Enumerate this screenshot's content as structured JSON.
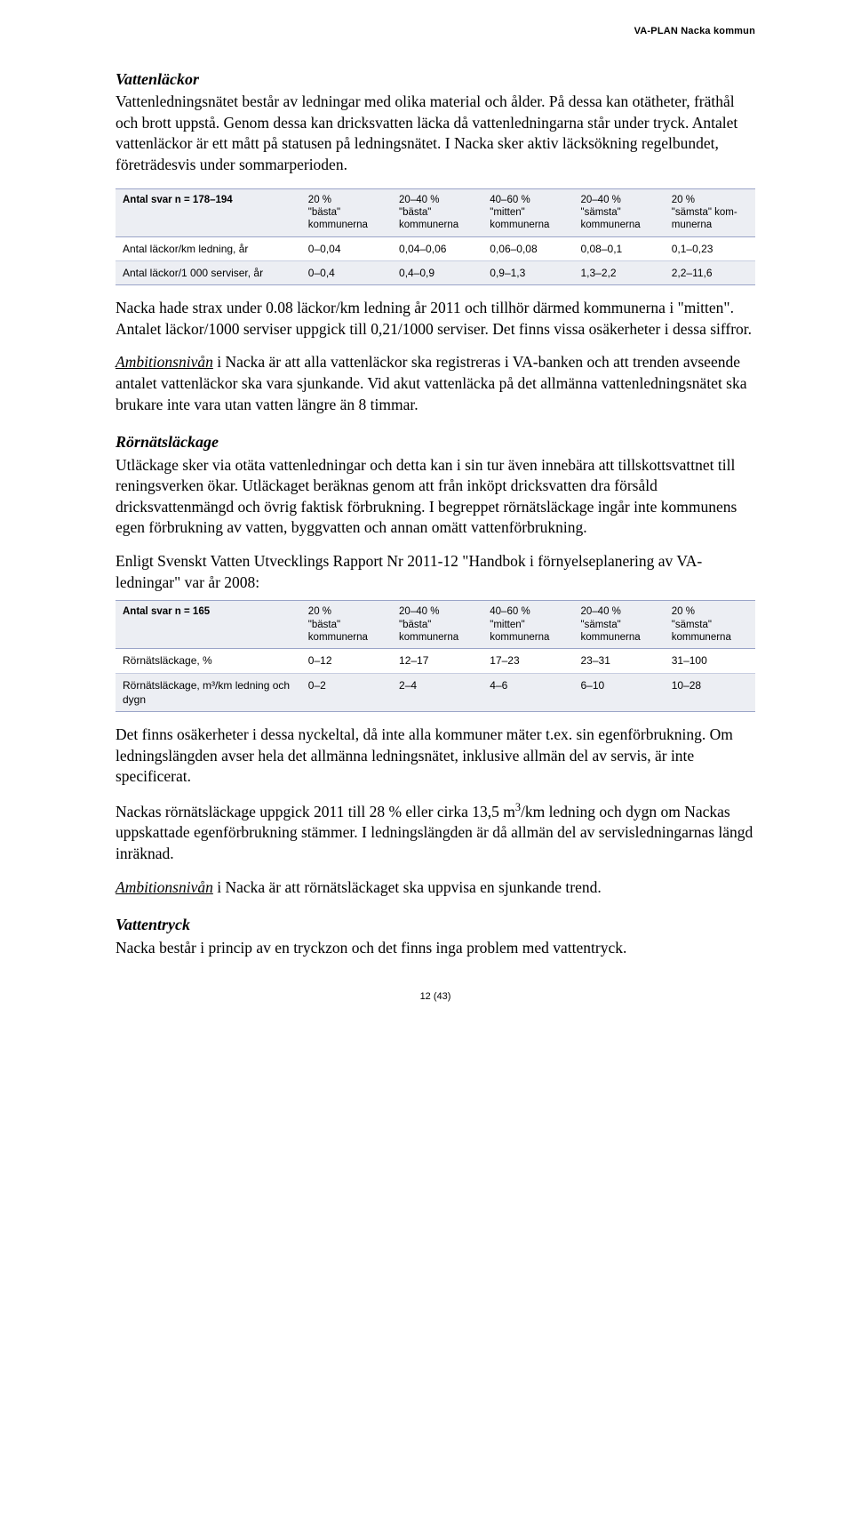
{
  "header": {
    "right_label": "VA-PLAN Nacka kommun"
  },
  "sections": {
    "vattenlackor": {
      "heading": "Vattenläckor",
      "p1": "Vattenledningsnätet består av ledningar med olika material och ålder. På dessa kan otätheter, fräthål och brott uppstå. Genom dessa kan dricksvatten läcka då vattenledningarna står under tryck. Antalet vattenläckor är ett mått på statusen på ledningsnätet. I Nacka sker aktiv läcksökning regelbundet, företrädesvis under sommarperioden."
    },
    "table1": {
      "caption_cell": "Antal svar n = 178–194",
      "columns": [
        "20 %\n\"bästa\"\nkommunerna",
        "20–40 %\n\"bästa\"\nkommunerna",
        "40–60 %\n\"mitten\"\nkommunerna",
        "20–40 %\n\"sämsta\"\nkommunerna",
        "20 %\n\"sämsta\" kom-\nmunerna"
      ],
      "rows": [
        {
          "label": "Antal läckor/km ledning, år",
          "cells": [
            "0–0,04",
            "0,04–0,06",
            "0,06–0,08",
            "0,08–0,1",
            "0,1–0,23"
          ]
        },
        {
          "label": "Antal läckor/1 000 serviser, år",
          "cells": [
            "0–0,4",
            "0,4–0,9",
            "0,9–1,3",
            "1,3–2,2",
            "2,2–11,6"
          ]
        }
      ]
    },
    "mid1": {
      "p1": "Nacka hade strax under 0.08 läckor/km ledning år 2011 och tillhör därmed kommunerna i \"mitten\". Antalet läckor/1000 serviser uppgick till 0,21/1000 serviser. Det finns vissa osäkerheter i dessa siffror.",
      "amb_label": "Ambitionsnivån",
      "amb_p": " i Nacka är att alla vattenläckor ska registreras i VA-banken och att trenden avseende antalet vattenläckor ska vara sjunkande. Vid akut vattenläcka på det allmänna vattenledningsnätet ska brukare inte vara utan vatten längre än 8 timmar."
    },
    "rornat": {
      "heading": "Rörnätsläckage",
      "p1": "Utläckage sker via otäta vattenledningar och detta kan i sin tur även innebära att tillskottsvattnet till reningsverken ökar. Utläckaget beräknas genom att från inköpt dricksvatten dra försåld dricksvattenmängd och övrig faktisk förbrukning. I begreppet rörnätsläckage ingår inte kommunens egen förbrukning av vatten, byggvatten och annan omätt vattenförbrukning.",
      "p2": "Enligt Svenskt Vatten Utvecklings Rapport Nr 2011-12 \"Handbok i förnyelseplanering av VA-ledningar\" var år 2008:"
    },
    "table2": {
      "caption_cell": "Antal svar n = 165",
      "columns": [
        "20 %\n\"bästa\"\nkommunerna",
        "20–40 %\n\"bästa\"\nkommunerna",
        "40–60 %\n\"mitten\"\nkommunerna",
        "20–40 %\n\"sämsta\"\nkommunerna",
        "20 %\n\"sämsta\"\nkommunerna"
      ],
      "rows": [
        {
          "label": "Rörnätsläckage, %",
          "cells": [
            "0–12",
            "12–17",
            "17–23",
            "23–31",
            "31–100"
          ]
        },
        {
          "label": "Rörnätsläckage, m³/km ledning och dygn",
          "cells": [
            "0–2",
            "2–4",
            "4–6",
            "6–10",
            "10–28"
          ]
        }
      ]
    },
    "after_t2": {
      "p1": "Det finns osäkerheter i dessa nyckeltal, då inte alla kommuner mäter t.ex. sin egenförbrukning. Om ledningslängden avser hela det allmänna ledningsnätet, inklusive allmän del av servis, är inte specificerat.",
      "p2_a": "Nackas rörnätsläckage uppgick 2011 till 28 % eller cirka 13,5 m",
      "p2_b": "/km ledning och dygn om Nackas uppskattade egenförbrukning stämmer. I ledningslängden är då allmän del av servisledningarnas längd inräknad.",
      "amb_label": "Ambitionsnivån",
      "amb_p": " i Nacka är att rörnätsläckaget ska uppvisa en sjunkande trend."
    },
    "vattentryck": {
      "heading": "Vattentryck",
      "p1": "Nacka består i princip av en tryckzon och det finns inga problem med vattentryck."
    }
  },
  "footer": {
    "page": "12 (43)"
  }
}
